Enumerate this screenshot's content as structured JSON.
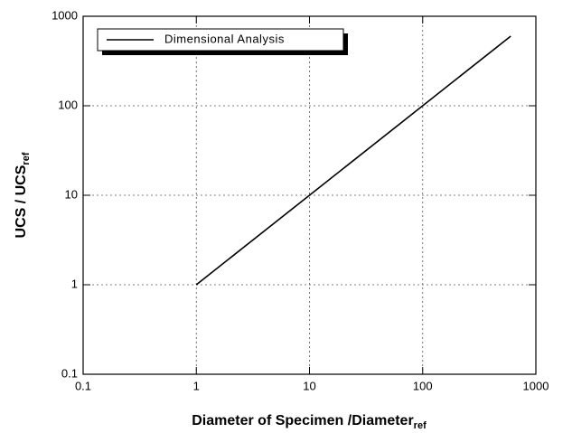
{
  "chart_data": {
    "type": "line",
    "xlabel": {
      "text": "Diameter of Specimen /Diameter",
      "sub": "ref"
    },
    "ylabel": {
      "text": "UCS / UCS",
      "sub": "ref"
    },
    "x": [
      1,
      10,
      100,
      600
    ],
    "series": [
      {
        "name": "Dimensional Analysis",
        "color": "#000000",
        "values": [
          1,
          10,
          100,
          600
        ]
      }
    ],
    "xscale": "log",
    "yscale": "log",
    "xlim": [
      0.1,
      1000
    ],
    "ylim": [
      0.1,
      1000
    ],
    "xticks": [
      0.1,
      1,
      10,
      100,
      1000
    ],
    "yticks": [
      0.1,
      1,
      10,
      100,
      1000
    ],
    "grid": true,
    "legend": "upper left"
  }
}
